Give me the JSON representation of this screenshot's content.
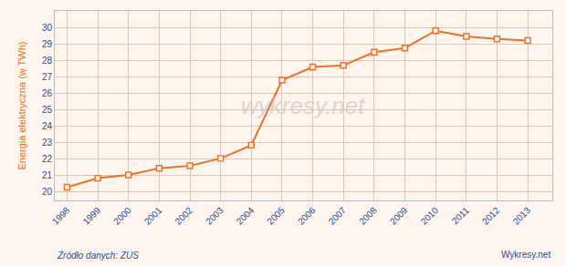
{
  "chart_data": {
    "type": "line",
    "x": [
      1998,
      1999,
      2000,
      2001,
      2002,
      2003,
      2004,
      2005,
      2006,
      2007,
      2008,
      2009,
      2010,
      2011,
      2012,
      2013
    ],
    "values": [
      20.3,
      20.85,
      21.05,
      21.45,
      21.6,
      22.05,
      22.85,
      26.8,
      27.6,
      27.7,
      28.5,
      28.75,
      29.8,
      29.45,
      29.3,
      29.2
    ],
    "color": "#E8732A",
    "marker": "square",
    "line_style": "solid",
    "ylabel": "Energia elektryczna (w TWh)",
    "annotations": [
      "wykresy.net",
      "Źródło danych: ZUS",
      "Wykresy.net"
    ],
    "xlim": [
      1997.6,
      2013.8
    ],
    "xticks": [
      1998,
      1999,
      2000,
      2001,
      2002,
      2003,
      2004,
      2005,
      2006,
      2007,
      2008,
      2009,
      2010,
      2011,
      2012,
      2013
    ],
    "ylim": [
      19.5,
      31.0
    ],
    "yticks": [
      20,
      21,
      22,
      23,
      24,
      25,
      26,
      27,
      28,
      29,
      30
    ],
    "grid": true
  }
}
